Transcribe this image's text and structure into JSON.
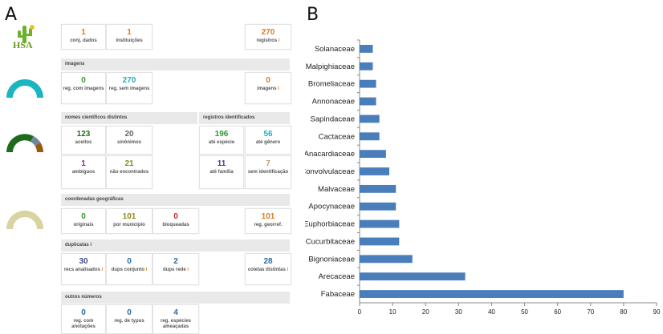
{
  "panels": {
    "a": "A",
    "b": "B"
  },
  "logo_text": "HSA",
  "section_images": "imagens",
  "section_names": "nomes científicos distintos",
  "section_identified": "registros identificados",
  "section_coords": "coordenadas geográficas",
  "section_dups": "duplicatas",
  "section_other": "outros números",
  "info_mark": "i",
  "stats": {
    "conj": {
      "value": "1",
      "label": "conj. dados"
    },
    "inst": {
      "value": "1",
      "label": "instituições"
    },
    "reg": {
      "value": "270",
      "label": "registros"
    },
    "com_img": {
      "value": "0",
      "label": "reg. com imagens"
    },
    "sem_img": {
      "value": "270",
      "label": "reg. sem imagens"
    },
    "imagens": {
      "value": "0",
      "label": "imagens"
    },
    "aceitos": {
      "value": "123",
      "label": "aceitos"
    },
    "sinonimos": {
      "value": "20",
      "label": "sinônimos"
    },
    "ambiguos": {
      "value": "1",
      "label": "ambíguos"
    },
    "nao_enc": {
      "value": "21",
      "label": "não encontrados"
    },
    "ate_especie": {
      "value": "196",
      "label": "até espécie"
    },
    "ate_genero": {
      "value": "56",
      "label": "até gênero"
    },
    "ate_familia": {
      "value": "11",
      "label": "até família"
    },
    "sem_ident": {
      "value": "7",
      "label": "sem identificação"
    },
    "originais": {
      "value": "0",
      "label": "originais"
    },
    "por_municipio": {
      "value": "101",
      "label": "por município"
    },
    "bloqueadas": {
      "value": "0",
      "label": "bloqueadas"
    },
    "georref": {
      "value": "101",
      "label": "reg. georref."
    },
    "recs": {
      "value": "30",
      "label": "recs analisados"
    },
    "dups_conj": {
      "value": "0",
      "label": "dups conjunto"
    },
    "dups_rede": {
      "value": "2",
      "label": "dups rede"
    },
    "coletas": {
      "value": "28",
      "label": "coletas distintas"
    },
    "anotacoes": {
      "value": "0",
      "label": "reg. com anotações"
    },
    "typus": {
      "value": "0",
      "label": "reg. de typus"
    },
    "ameacadas": {
      "value": "4",
      "label": "reg. espécies ameaçadas"
    }
  },
  "gauges": [
    {
      "icon": "teal-arc-gauge",
      "colors": [
        "#1ab5c0"
      ]
    },
    {
      "icon": "green-arc-gauge",
      "colors": [
        "#1e6b1e",
        "#6e8a9a",
        "#9a5a10"
      ]
    },
    {
      "icon": "khaki-arc-gauge",
      "colors": [
        "#d8d3a0"
      ]
    }
  ],
  "colors": {
    "green": "#2e9a2e",
    "teal": "#2aaab5",
    "orange": "#e07a1f",
    "darkgreen": "#1e6b1e",
    "purple": "#8a2a9a",
    "gray": "#666666",
    "olive": "#8a8a1a",
    "navy": "#3a4a8a",
    "khaki": "#b0a070",
    "red": "#cc2222",
    "blue": "#2a6aa0",
    "bar": "#4a7ebb"
  },
  "chart_data": {
    "type": "bar",
    "orientation": "horizontal",
    "categories": [
      "Solanaceae",
      "Malpighiaceae",
      "Bromeliaceae",
      "Annonaceae",
      "Sapindaceae",
      "Cactaceae",
      "Anacardiaceae",
      "Convolvulaceae",
      "Malvaceae",
      "Apocynaceae",
      "Euphorbiaceae",
      "Cucurbitaceae",
      "Bignoniaceae",
      "Arecaceae",
      "Fabaceae"
    ],
    "values": [
      4,
      4,
      5,
      5,
      6,
      6,
      8,
      9,
      11,
      11,
      12,
      12,
      16,
      32,
      80
    ],
    "xlim": [
      0,
      90
    ],
    "xticks": [
      "0",
      "10",
      "20",
      "30",
      "40",
      "50",
      "60",
      "70",
      "80",
      "90"
    ],
    "grid": false
  }
}
